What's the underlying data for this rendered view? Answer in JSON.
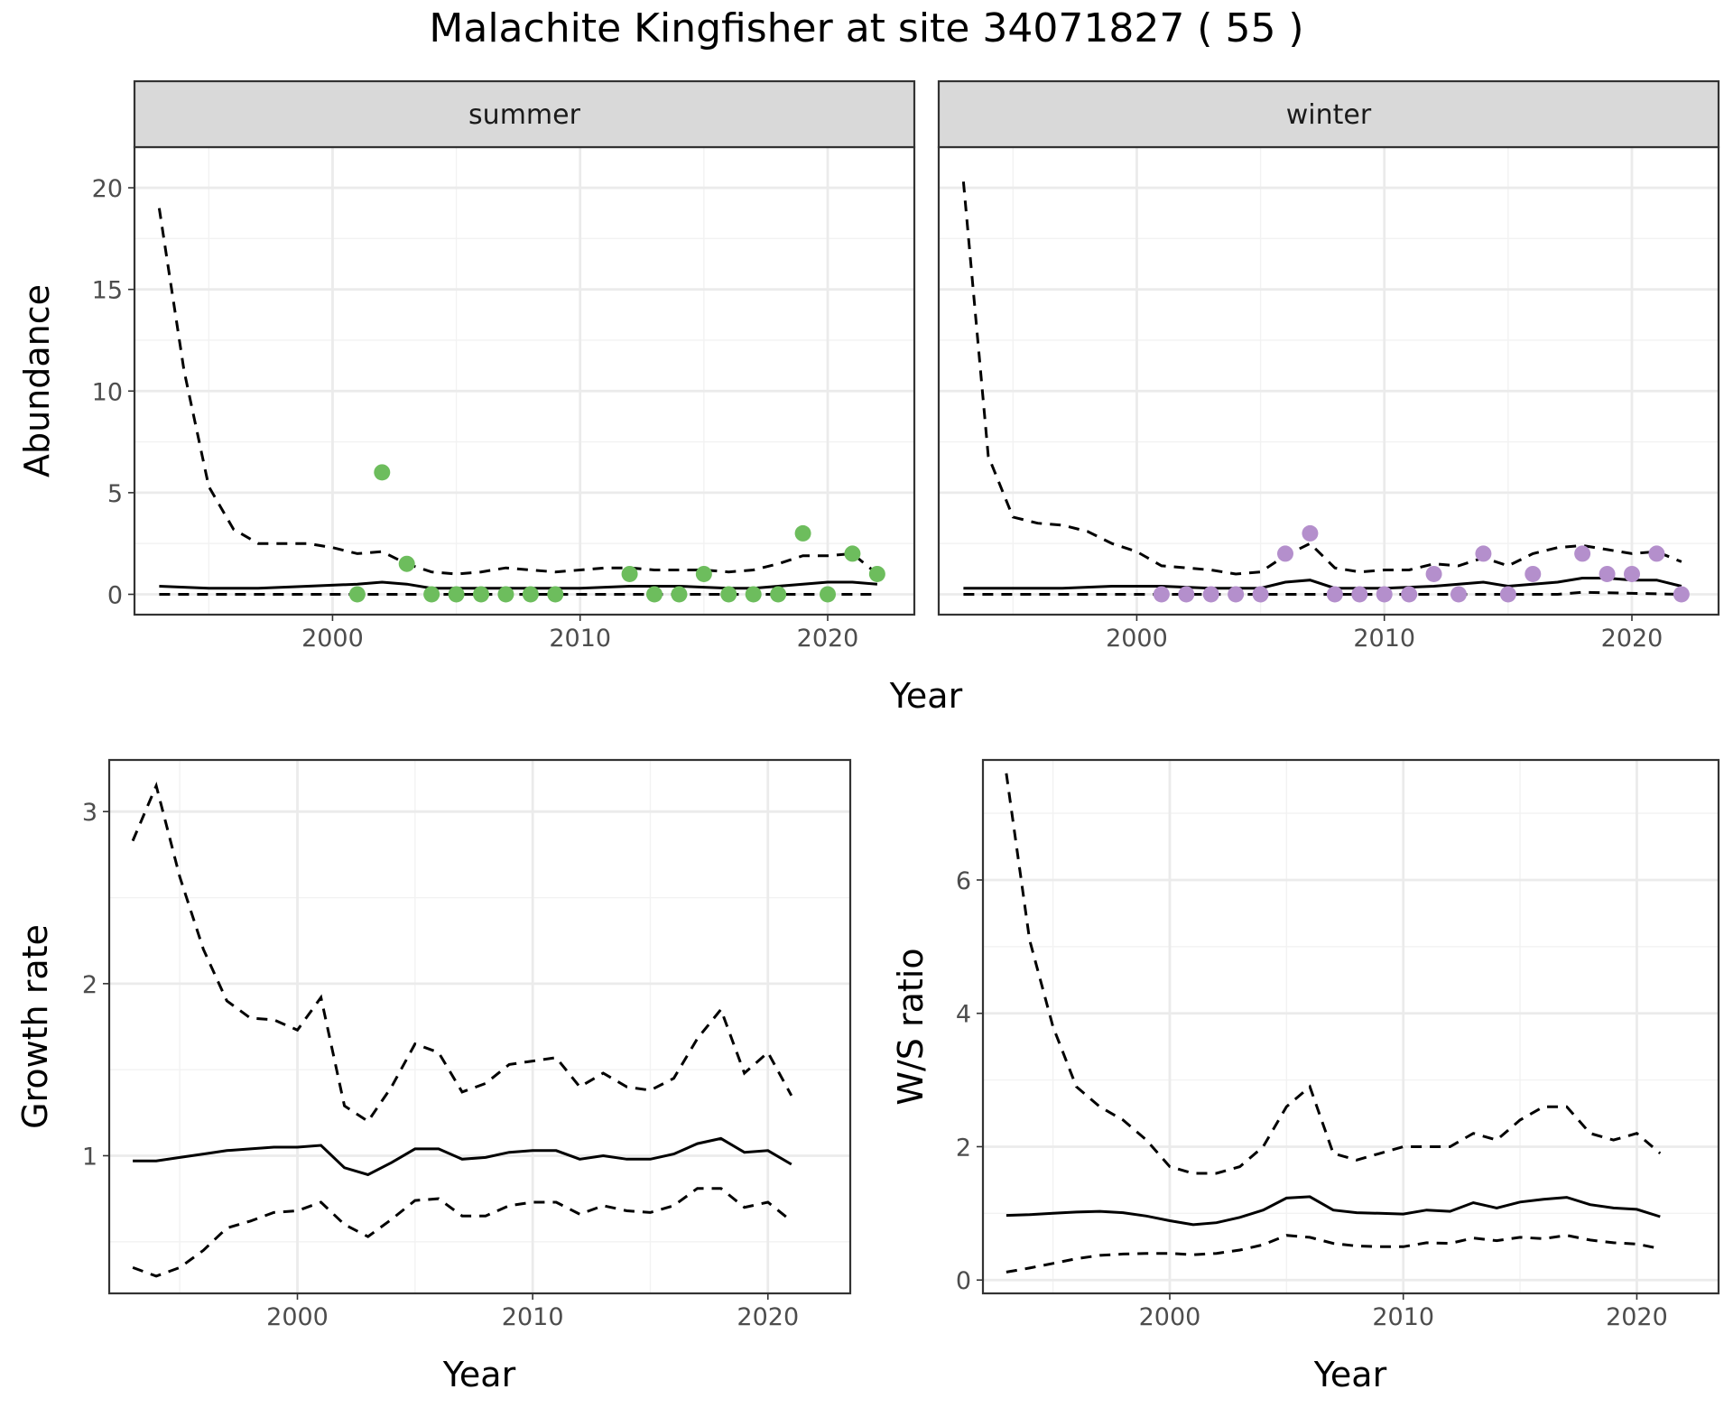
{
  "figure": {
    "title": "Malachite Kingfisher at site 34071827 ( 55 )"
  },
  "chart_data": [
    {
      "id": "abundance",
      "type": "line",
      "ylabel": "Abundance",
      "xlabel": "Year",
      "xlim": [
        1992,
        2023.5
      ],
      "ylim": [
        -1,
        22
      ],
      "xticks": [
        2000,
        2010,
        2020
      ],
      "yticks": [
        0,
        5,
        10,
        15,
        20
      ],
      "grid": true,
      "facets": [
        {
          "label": "summer",
          "point_color": "#6dbd5d",
          "mean": {
            "x": [
              1993,
              1995,
              1997,
              1999,
              2001,
              2002,
              2003,
              2004,
              2006,
              2008,
              2010,
              2012,
              2014,
              2016,
              2017,
              2018,
              2019,
              2020,
              2021,
              2022
            ],
            "y": [
              0.4,
              0.3,
              0.3,
              0.4,
              0.5,
              0.6,
              0.5,
              0.3,
              0.3,
              0.3,
              0.3,
              0.4,
              0.4,
              0.3,
              0.3,
              0.4,
              0.5,
              0.6,
              0.6,
              0.5
            ]
          },
          "upper": {
            "x": [
              1993,
              1994,
              1995,
              1996,
              1997,
              1998,
              1999,
              2000,
              2001,
              2002,
              2003,
              2004,
              2005,
              2006,
              2007,
              2008,
              2009,
              2010,
              2011,
              2012,
              2013,
              2014,
              2015,
              2016,
              2017,
              2018,
              2019,
              2020,
              2021,
              2022
            ],
            "y": [
              19,
              11,
              5.3,
              3.2,
              2.5,
              2.5,
              2.5,
              2.3,
              2.0,
              2.1,
              1.5,
              1.1,
              1.0,
              1.1,
              1.3,
              1.2,
              1.1,
              1.2,
              1.3,
              1.3,
              1.2,
              1.2,
              1.2,
              1.1,
              1.2,
              1.5,
              1.9,
              1.9,
              2.0,
              1.0
            ]
          },
          "lower": {
            "x": [
              1993,
              2022
            ],
            "y": [
              0,
              0
            ]
          },
          "points": {
            "x": [
              2001,
              2002,
              2003,
              2004,
              2005,
              2006,
              2007,
              2008,
              2009,
              2012,
              2013,
              2014,
              2015,
              2016,
              2017,
              2018,
              2019,
              2020,
              2021,
              2022
            ],
            "y": [
              0,
              6,
              1.5,
              0,
              0,
              0,
              0,
              0,
              0,
              1,
              0,
              0,
              1,
              0,
              0,
              0,
              3,
              0,
              2,
              1
            ]
          }
        },
        {
          "label": "winter",
          "point_color": "#b48fcc",
          "mean": {
            "x": [
              1993,
              1995,
              1997,
              1999,
              2001,
              2003,
              2005,
              2006,
              2007,
              2008,
              2010,
              2012,
              2014,
              2015,
              2016,
              2017,
              2018,
              2019,
              2020,
              2021,
              2022
            ],
            "y": [
              0.3,
              0.3,
              0.3,
              0.4,
              0.4,
              0.3,
              0.3,
              0.6,
              0.7,
              0.3,
              0.3,
              0.4,
              0.6,
              0.4,
              0.5,
              0.6,
              0.8,
              0.8,
              0.7,
              0.7,
              0.4
            ]
          },
          "upper": {
            "x": [
              1993,
              1994,
              1995,
              1996,
              1997,
              1998,
              1999,
              2000,
              2001,
              2002,
              2003,
              2004,
              2005,
              2006,
              2007,
              2008,
              2009,
              2010,
              2011,
              2012,
              2013,
              2014,
              2015,
              2016,
              2017,
              2018,
              2019,
              2020,
              2021,
              2022
            ],
            "y": [
              20.3,
              6.8,
              3.8,
              3.5,
              3.4,
              3.1,
              2.5,
              2.1,
              1.4,
              1.3,
              1.2,
              1.0,
              1.1,
              1.9,
              2.5,
              1.3,
              1.1,
              1.2,
              1.2,
              1.5,
              1.4,
              1.8,
              1.4,
              2.0,
              2.3,
              2.4,
              2.2,
              2.0,
              2.1,
              1.6
            ]
          },
          "lower": {
            "x": [
              1993,
              2017,
              2018,
              2022
            ],
            "y": [
              0,
              0,
              0.1,
              0
            ]
          },
          "points": {
            "x": [
              2001,
              2002,
              2003,
              2004,
              2005,
              2006,
              2007,
              2008,
              2009,
              2010,
              2011,
              2012,
              2013,
              2014,
              2015,
              2016,
              2018,
              2019,
              2020,
              2021,
              2022
            ],
            "y": [
              0,
              0,
              0,
              0,
              0,
              2,
              3,
              0,
              0,
              0,
              0,
              1,
              0,
              2,
              0,
              1,
              2,
              1,
              1,
              2,
              0
            ]
          }
        }
      ]
    },
    {
      "id": "growth",
      "type": "line",
      "ylabel": "Growth rate",
      "xlabel": "Year",
      "xlim": [
        1992,
        2023.5
      ],
      "ylim": [
        0.2,
        3.3
      ],
      "xticks": [
        2000,
        2010,
        2020
      ],
      "yticks": [
        1,
        2,
        3
      ],
      "grid": true,
      "mean": {
        "x": [
          1993,
          1994,
          1995,
          1996,
          1997,
          1998,
          1999,
          2000,
          2001,
          2002,
          2003,
          2004,
          2005,
          2006,
          2007,
          2008,
          2009,
          2010,
          2011,
          2012,
          2013,
          2014,
          2015,
          2016,
          2017,
          2018,
          2019,
          2020,
          2021
        ],
        "y": [
          0.97,
          0.97,
          0.99,
          1.01,
          1.03,
          1.04,
          1.05,
          1.05,
          1.06,
          0.93,
          0.89,
          0.96,
          1.04,
          1.04,
          0.98,
          0.99,
          1.02,
          1.03,
          1.03,
          0.98,
          1.0,
          0.98,
          0.98,
          1.01,
          1.07,
          1.1,
          1.02,
          1.03,
          0.95
        ]
      },
      "upper": {
        "x": [
          1993,
          1994,
          1995,
          1996,
          1997,
          1998,
          1999,
          2000,
          2001,
          2002,
          2003,
          2004,
          2005,
          2006,
          2007,
          2008,
          2009,
          2010,
          2011,
          2012,
          2013,
          2014,
          2015,
          2016,
          2017,
          2018,
          2019,
          2020,
          2021
        ],
        "y": [
          2.83,
          3.15,
          2.62,
          2.2,
          1.9,
          1.8,
          1.79,
          1.73,
          1.92,
          1.29,
          1.2,
          1.4,
          1.65,
          1.6,
          1.37,
          1.42,
          1.53,
          1.55,
          1.57,
          1.4,
          1.48,
          1.4,
          1.38,
          1.45,
          1.68,
          1.85,
          1.48,
          1.6,
          1.35
        ]
      },
      "lower": {
        "x": [
          1993,
          1994,
          1995,
          1996,
          1997,
          1998,
          1999,
          2000,
          2001,
          2002,
          2003,
          2004,
          2005,
          2006,
          2007,
          2008,
          2009,
          2010,
          2011,
          2012,
          2013,
          2014,
          2015,
          2016,
          2017,
          2018,
          2019,
          2020,
          2021
        ],
        "y": [
          0.35,
          0.3,
          0.35,
          0.45,
          0.58,
          0.62,
          0.67,
          0.68,
          0.73,
          0.6,
          0.53,
          0.63,
          0.74,
          0.75,
          0.65,
          0.65,
          0.71,
          0.73,
          0.73,
          0.66,
          0.71,
          0.68,
          0.67,
          0.71,
          0.81,
          0.81,
          0.7,
          0.73,
          0.62
        ]
      }
    },
    {
      "id": "ratio",
      "type": "line",
      "ylabel": "W/S ratio",
      "xlabel": "Year",
      "xlim": [
        1992,
        2023.5
      ],
      "ylim": [
        -0.2,
        7.8
      ],
      "xticks": [
        2000,
        2010,
        2020
      ],
      "yticks": [
        0,
        2,
        4,
        6
      ],
      "grid": true,
      "mean": {
        "x": [
          1993,
          1994,
          1995,
          1996,
          1997,
          1998,
          1999,
          2000,
          2001,
          2002,
          2003,
          2004,
          2005,
          2006,
          2007,
          2008,
          2009,
          2010,
          2011,
          2012,
          2013,
          2014,
          2015,
          2016,
          2017,
          2018,
          2019,
          2020,
          2021
        ],
        "y": [
          0.97,
          0.98,
          1.0,
          1.02,
          1.03,
          1.01,
          0.96,
          0.89,
          0.83,
          0.86,
          0.94,
          1.05,
          1.23,
          1.25,
          1.05,
          1.01,
          1.0,
          0.99,
          1.05,
          1.03,
          1.16,
          1.08,
          1.17,
          1.21,
          1.24,
          1.13,
          1.08,
          1.06,
          0.95
        ]
      },
      "upper": {
        "x": [
          1993,
          1994,
          1995,
          1996,
          1997,
          1998,
          1999,
          2000,
          2001,
          2002,
          2003,
          2004,
          2005,
          2006,
          2007,
          2008,
          2009,
          2010,
          2011,
          2012,
          2013,
          2014,
          2015,
          2016,
          2017,
          2018,
          2019,
          2020,
          2021
        ],
        "y": [
          7.6,
          5.1,
          3.8,
          2.9,
          2.6,
          2.4,
          2.1,
          1.7,
          1.6,
          1.6,
          1.7,
          2.0,
          2.6,
          2.9,
          1.9,
          1.8,
          1.9,
          2.0,
          2.0,
          2.0,
          2.2,
          2.1,
          2.4,
          2.6,
          2.6,
          2.2,
          2.1,
          2.2,
          1.9
        ]
      },
      "lower": {
        "x": [
          1993,
          1994,
          1995,
          1996,
          1997,
          1998,
          1999,
          2000,
          2001,
          2002,
          2003,
          2004,
          2005,
          2006,
          2007,
          2008,
          2009,
          2010,
          2011,
          2012,
          2013,
          2014,
          2015,
          2016,
          2017,
          2018,
          2019,
          2020,
          2021
        ],
        "y": [
          0.12,
          0.18,
          0.25,
          0.32,
          0.37,
          0.39,
          0.4,
          0.4,
          0.38,
          0.4,
          0.45,
          0.53,
          0.67,
          0.64,
          0.55,
          0.51,
          0.5,
          0.5,
          0.56,
          0.55,
          0.63,
          0.59,
          0.64,
          0.62,
          0.67,
          0.6,
          0.56,
          0.54,
          0.47
        ]
      }
    }
  ]
}
